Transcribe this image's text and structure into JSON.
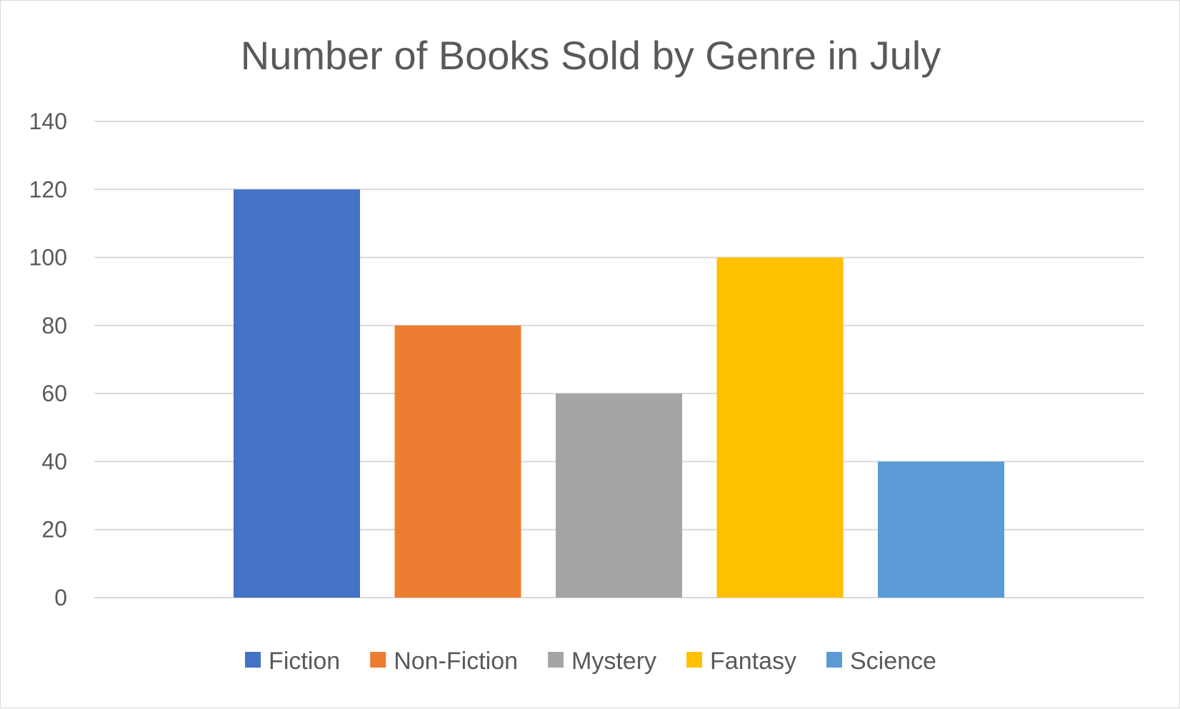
{
  "chart_data": {
    "type": "bar",
    "title": "Number of Books Sold by Genre in July",
    "xlabel": "",
    "ylabel": "",
    "ylim": [
      0,
      140
    ],
    "yticks": [
      0,
      20,
      40,
      60,
      80,
      100,
      120,
      140
    ],
    "grid": true,
    "legend_position": "bottom",
    "series": [
      {
        "name": "Fiction",
        "values": [
          120
        ],
        "color": "#4472C4"
      },
      {
        "name": "Non-Fiction",
        "values": [
          80
        ],
        "color": "#ED7D31"
      },
      {
        "name": "Mystery",
        "values": [
          60
        ],
        "color": "#A5A5A5"
      },
      {
        "name": "Fantasy",
        "values": [
          100
        ],
        "color": "#FFC000"
      },
      {
        "name": "Science",
        "values": [
          40
        ],
        "color": "#5B9BD5"
      }
    ]
  }
}
